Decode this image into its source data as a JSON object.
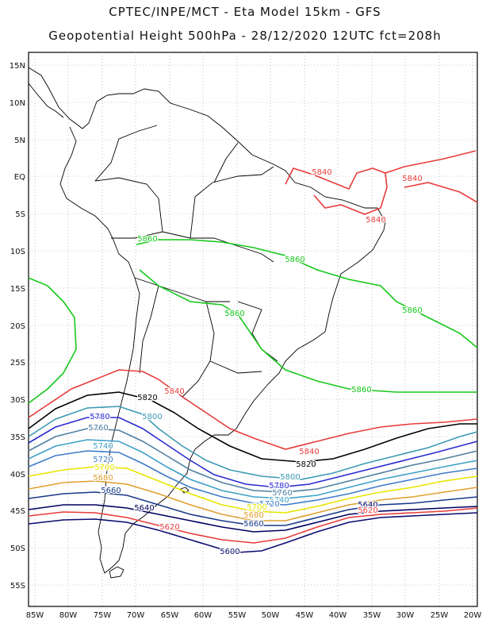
{
  "title_line1": "CPTEC/INPE/MCT -  Eta Model 15km - GFS",
  "title_line2": "Geopotential Height 500hPa - 28/12/2020 12UTC fct=208h",
  "lon_ticks": [
    "85W",
    "80W",
    "75W",
    "70W",
    "65W",
    "60W",
    "55W",
    "50W",
    "45W",
    "40W",
    "35W",
    "30W",
    "25W",
    "20W"
  ],
  "lat_ticks": [
    "15N",
    "10N",
    "5N",
    "EQ",
    "5S",
    "10S",
    "15S",
    "20S",
    "25S",
    "30S",
    "35S",
    "40S",
    "45S",
    "50S",
    "55S"
  ],
  "contour_colors": {
    "5860": "#16c81a",
    "5840": "#e83c3c",
    "5820": "#000000",
    "5800": "#3c9ab4",
    "5780": "#2a2ad0",
    "5760": "#4f7fa0",
    "5740": "#3da0c8",
    "5720": "#3f7cc8",
    "5700": "#e6e600",
    "5680": "#e0a030",
    "5660": "#1a3a8a",
    "5640": "#000060",
    "5620": "#e83c3c",
    "5600": "#0a0a70"
  },
  "contour_labels": [
    {
      "text": "5860"
    },
    {
      "text": "5860"
    },
    {
      "text": "5860"
    },
    {
      "text": "5860"
    },
    {
      "text": "5860"
    },
    {
      "text": "5840"
    },
    {
      "text": "5840"
    },
    {
      "text": "5840"
    },
    {
      "text": "5840"
    },
    {
      "text": "5840"
    },
    {
      "text": "5820"
    },
    {
      "text": "5820"
    },
    {
      "text": "5800"
    },
    {
      "text": "5800"
    },
    {
      "text": "5780"
    },
    {
      "text": "5780"
    },
    {
      "text": "5760"
    },
    {
      "text": "5760"
    },
    {
      "text": "5740"
    },
    {
      "text": "5740"
    },
    {
      "text": "5720"
    },
    {
      "text": "5720"
    },
    {
      "text": "5700"
    },
    {
      "text": "5700"
    },
    {
      "text": "5680"
    },
    {
      "text": "5680"
    },
    {
      "text": "5660"
    },
    {
      "text": "5660"
    },
    {
      "text": "5640"
    },
    {
      "text": "5640"
    },
    {
      "text": "5620"
    },
    {
      "text": "5620"
    },
    {
      "text": "5600"
    }
  ]
}
